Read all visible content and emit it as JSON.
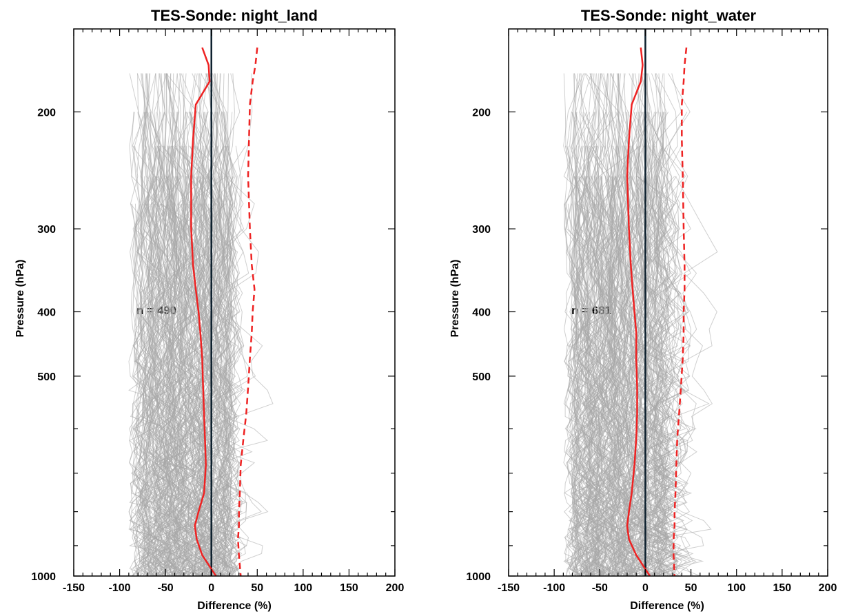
{
  "chart_data": [
    {
      "type": "line",
      "title": "TES-Sonde: night_land",
      "xlabel": "Difference (%)",
      "ylabel": "Pressure (hPa)",
      "xlim": [
        -150,
        200
      ],
      "ylim": [
        1000,
        150
      ],
      "y_scale": "log",
      "y_reversed": true,
      "x_ticks": [
        "-150",
        "-100",
        "-50",
        "0",
        "50",
        "100",
        "150",
        "200"
      ],
      "y_ticks": [
        "200",
        "300",
        "400",
        "500",
        "1000"
      ],
      "annotation": "n =  490",
      "reference_line_x": 0,
      "colors": {
        "mean": "#ee2222",
        "spread": "#ee2222",
        "individual": "#a8a8a8",
        "zero": "#0b1e2c"
      },
      "series": [
        {
          "style": "solid",
          "x": [
            -10,
            -3,
            -2,
            -17,
            -20,
            -22,
            -22,
            -20,
            -17,
            -14,
            -12,
            -10,
            -9,
            -8,
            -7,
            -6,
            -8,
            -14,
            -18,
            -16,
            -10,
            5
          ],
          "y": [
            160,
            170,
            180,
            195,
            220,
            250,
            300,
            340,
            370,
            400,
            430,
            470,
            520,
            570,
            620,
            680,
            750,
            800,
            840,
            880,
            930,
            1000
          ]
        },
        {
          "style": "dashed",
          "x": [
            50,
            48,
            45,
            42,
            41,
            40,
            42,
            44,
            47,
            45,
            44,
            42,
            40,
            38,
            35,
            32,
            31,
            30,
            30,
            29,
            30,
            32
          ],
          "y": [
            160,
            170,
            180,
            195,
            220,
            250,
            300,
            340,
            370,
            400,
            430,
            470,
            520,
            570,
            620,
            680,
            750,
            800,
            840,
            880,
            930,
            1000
          ]
        }
      ]
    },
    {
      "type": "line",
      "title": "TES-Sonde: night_water",
      "xlabel": "Difference (%)",
      "ylabel": "Pressure (hPa)",
      "xlim": [
        -150,
        200
      ],
      "ylim": [
        1000,
        150
      ],
      "y_scale": "log",
      "y_reversed": true,
      "x_ticks": [
        "-150",
        "-100",
        "-50",
        "0",
        "50",
        "100",
        "150",
        "200"
      ],
      "y_ticks": [
        "200",
        "300",
        "400",
        "500",
        "1000"
      ],
      "annotation": "n =  681",
      "reference_line_x": 0,
      "colors": {
        "mean": "#ee2222",
        "spread": "#ee2222",
        "individual": "#a8a8a8",
        "zero": "#0b1e2c"
      },
      "series": [
        {
          "style": "solid",
          "x": [
            -5,
            -3,
            -5,
            -15,
            -18,
            -20,
            -18,
            -16,
            -14,
            -12,
            -10,
            -10,
            -9,
            -9,
            -10,
            -12,
            -15,
            -18,
            -20,
            -18,
            -10,
            5
          ],
          "y": [
            160,
            170,
            180,
            195,
            220,
            250,
            300,
            340,
            370,
            400,
            430,
            470,
            520,
            570,
            620,
            680,
            750,
            800,
            840,
            880,
            930,
            1000
          ]
        },
        {
          "style": "dashed",
          "x": [
            45,
            43,
            42,
            40,
            40,
            41,
            42,
            43,
            43,
            42,
            42,
            41,
            39,
            37,
            35,
            34,
            33,
            32,
            32,
            31,
            31,
            32
          ],
          "y": [
            160,
            170,
            180,
            195,
            220,
            250,
            300,
            340,
            370,
            400,
            430,
            470,
            520,
            570,
            620,
            680,
            750,
            800,
            840,
            880,
            930,
            1000
          ]
        }
      ]
    }
  ]
}
